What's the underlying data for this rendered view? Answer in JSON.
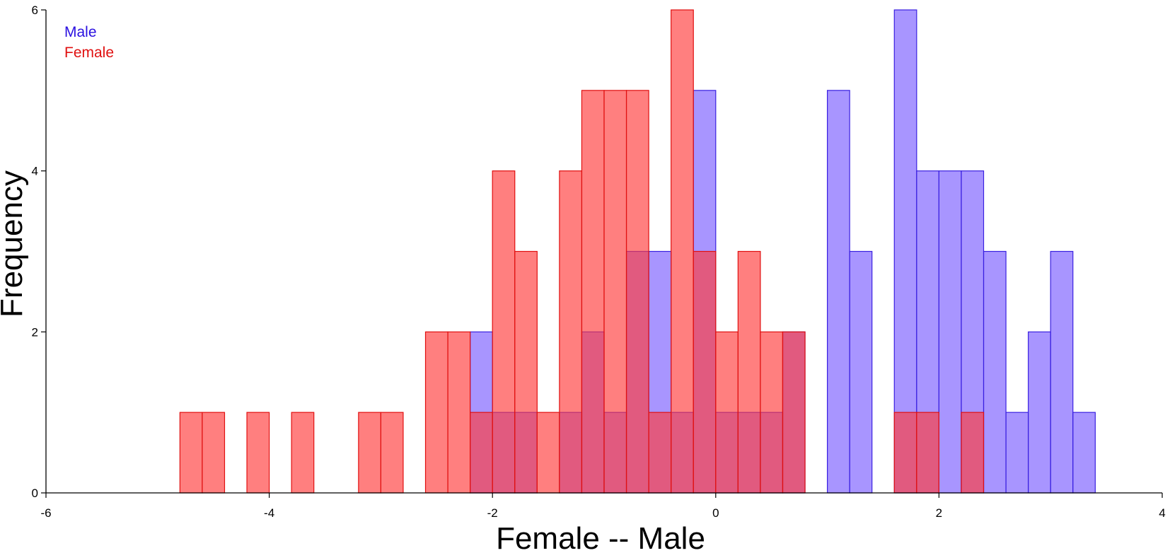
{
  "chart_data": {
    "type": "bar",
    "xlabel": "Female -- Male",
    "ylabel": "Frequency",
    "xlim": [
      -6,
      4
    ],
    "ylim": [
      0,
      6
    ],
    "xticks": [
      "-6",
      "-4",
      "-2",
      "0",
      "2",
      "4"
    ],
    "yticks": [
      "0",
      "2",
      "4",
      "6"
    ],
    "bin_width": 0.2,
    "legend_position": "top-left",
    "series": [
      {
        "name": "Male",
        "color": "#7a5cff",
        "edge": "#3a20e0",
        "text_color": "#2a10e0",
        "bins": [
          {
            "x0": -2.2,
            "count": 2
          },
          {
            "x0": -2.0,
            "count": 1
          },
          {
            "x0": -1.8,
            "count": 1
          },
          {
            "x0": -1.4,
            "count": 1
          },
          {
            "x0": -1.2,
            "count": 2
          },
          {
            "x0": -1.0,
            "count": 1
          },
          {
            "x0": -0.8,
            "count": 3
          },
          {
            "x0": -0.6,
            "count": 3
          },
          {
            "x0": -0.4,
            "count": 1
          },
          {
            "x0": -0.2,
            "count": 5
          },
          {
            "x0": 0.0,
            "count": 1
          },
          {
            "x0": 0.2,
            "count": 1
          },
          {
            "x0": 0.4,
            "count": 1
          },
          {
            "x0": 0.6,
            "count": 2
          },
          {
            "x0": 1.0,
            "count": 5
          },
          {
            "x0": 1.2,
            "count": 3
          },
          {
            "x0": 1.6,
            "count": 6
          },
          {
            "x0": 1.8,
            "count": 4
          },
          {
            "x0": 2.0,
            "count": 4
          },
          {
            "x0": 2.2,
            "count": 4
          },
          {
            "x0": 2.4,
            "count": 3
          },
          {
            "x0": 2.6,
            "count": 1
          },
          {
            "x0": 2.8,
            "count": 2
          },
          {
            "x0": 3.0,
            "count": 3
          },
          {
            "x0": 3.2,
            "count": 1
          }
        ]
      },
      {
        "name": "Female",
        "color": "#ff3b3b",
        "edge": "#e01010",
        "text_color": "#e01010",
        "bins": [
          {
            "x0": -4.8,
            "count": 1
          },
          {
            "x0": -4.6,
            "count": 1
          },
          {
            "x0": -4.2,
            "count": 1
          },
          {
            "x0": -3.8,
            "count": 1
          },
          {
            "x0": -3.2,
            "count": 1
          },
          {
            "x0": -3.0,
            "count": 1
          },
          {
            "x0": -2.6,
            "count": 2
          },
          {
            "x0": -2.4,
            "count": 2
          },
          {
            "x0": -2.2,
            "count": 1
          },
          {
            "x0": -2.0,
            "count": 4
          },
          {
            "x0": -1.8,
            "count": 3
          },
          {
            "x0": -1.6,
            "count": 1
          },
          {
            "x0": -1.4,
            "count": 4
          },
          {
            "x0": -1.2,
            "count": 5
          },
          {
            "x0": -1.0,
            "count": 5
          },
          {
            "x0": -0.8,
            "count": 5
          },
          {
            "x0": -0.6,
            "count": 1
          },
          {
            "x0": -0.4,
            "count": 6
          },
          {
            "x0": -0.2,
            "count": 3
          },
          {
            "x0": 0.0,
            "count": 2
          },
          {
            "x0": 0.2,
            "count": 3
          },
          {
            "x0": 0.4,
            "count": 2
          },
          {
            "x0": 0.6,
            "count": 2
          },
          {
            "x0": 1.6,
            "count": 1
          },
          {
            "x0": 1.8,
            "count": 1
          },
          {
            "x0": 2.2,
            "count": 1
          }
        ]
      }
    ]
  }
}
